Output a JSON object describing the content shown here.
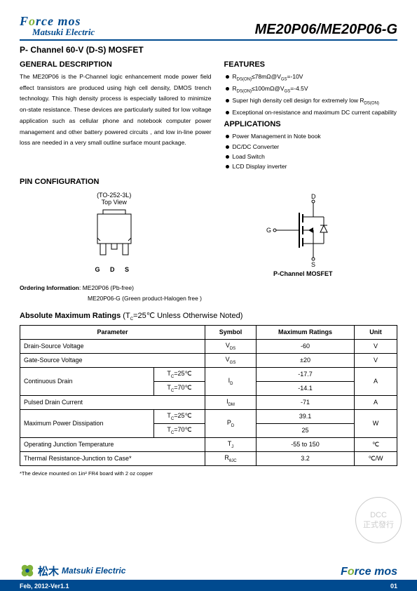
{
  "header": {
    "brand1": "Force mos",
    "brand2": "Matsuki Electric",
    "part": "ME20P06/ME20P06-G"
  },
  "subtitle": "P- Channel 60-V (D-S) MOSFET",
  "general": {
    "head": "GENERAL DESCRIPTION",
    "text": "The ME20P06 is the P-Channel logic enhancement mode power field effect transistors are produced using high cell density, DMOS trench technology. This high density process is especially tailored to minimize on-state resistance. These devices are particularly suited for low voltage application such as cellular phone and notebook computer power management and other battery powered circuits , and low in-line power loss are needed in a very small outline surface mount package."
  },
  "features": {
    "head": "FEATURES",
    "items": [
      "R<span class='sub'>DS(ON)</span>≤78mΩ@V<span class='sub'>GS</span>=-10V",
      "R<span class='sub'>DS(ON)</span>≤100mΩ@V<span class='sub'>GS</span>=-4.5V",
      "Super high density cell design for extremely low R<span class='sub'>DS(ON)</span>",
      "Exceptional on-resistance and maximum DC current capability"
    ]
  },
  "apps": {
    "head": "APPLICATIONS",
    "items": [
      "Power Management in Note book",
      "DC/DC Converter",
      "Load Switch",
      "LCD Display inverter"
    ]
  },
  "pinconf": {
    "head": "PIN   CONFIGURATION",
    "pkg": "(TO-252-3L)",
    "view": "Top View",
    "pins": "G   D   S",
    "symlabel": "P-Channel MOSFET"
  },
  "ordering": {
    "label": "Ordering Information",
    "l1": ": ME20P06 (Pb-free)",
    "l2": "ME20P06-G (Green product-Halogen free )"
  },
  "ratings": {
    "head": "Absolute Maximum Ratings",
    "cond": " (T",
    "cond2": "=25℃ Unless Otherwise Noted)",
    "cols": [
      "Parameter",
      "Symbol",
      "Maximum Ratings",
      "Unit"
    ],
    "rows": [
      {
        "param": "Drain-Source Voltage",
        "cond": null,
        "sym": "V<span class='sub'>DS</span>",
        "max": "-60",
        "unit": "V"
      },
      {
        "param": "Gate-Source Voltage",
        "cond": null,
        "sym": "V<span class='sub'>GS</span>",
        "max": "±20",
        "unit": "V"
      },
      {
        "param": "Continuous Drain",
        "cond": [
          "T<span class='sub'>C</span>=25℃",
          "T<span class='sub'>C</span>=70℃"
        ],
        "sym": "I<span class='sub'>D</span>",
        "max": [
          "-17.7",
          "-14.1"
        ],
        "unit": "A"
      },
      {
        "param": "Pulsed Drain Current",
        "cond": null,
        "sym": "I<span class='sub'>DM</span>",
        "max": "-71",
        "unit": "A"
      },
      {
        "param": "Maximum Power Dissipation",
        "cond": [
          "T<span class='sub'>C</span>=25℃",
          "T<span class='sub'>C</span>=70℃"
        ],
        "sym": "P<span class='sub'>D</span>",
        "max": [
          "39.1",
          "25"
        ],
        "unit": "W"
      },
      {
        "param": "Operating Junction Temperature",
        "cond": null,
        "sym": "T<span class='sub'>J</span>",
        "max": "-55 to 150",
        "unit": "℃"
      },
      {
        "param": "Thermal Resistance-Junction to Case*",
        "cond": null,
        "sym": "R<span class='sub'>θJC</span>",
        "max": "3.2",
        "unit": "℃/W"
      }
    ],
    "footnote": "*The device mounted on 1in² FR4 board with 2 oz copper"
  },
  "watermark": {
    "l1": "DCC",
    "l2": "正式發行"
  },
  "footer": {
    "brand2": "Matsuki Electric",
    "brand1": "Force mos",
    "date": "Feb, 2012-Ver1.1",
    "page": "01"
  }
}
